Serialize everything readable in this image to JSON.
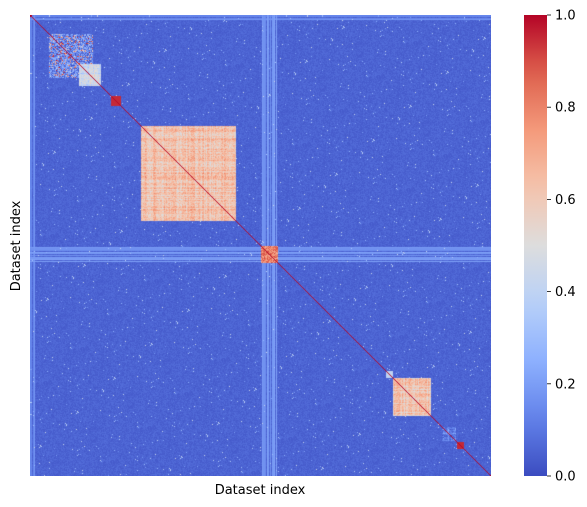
{
  "chart_data": {
    "type": "heatmap",
    "title": "",
    "xlabel": "Dataset index",
    "ylabel": "Dataset index",
    "n": 460,
    "colormap": "coolwarm",
    "colorbar": {
      "range": [
        0.0,
        1.0
      ],
      "ticks": [
        "0.0",
        "0.2",
        "0.4",
        "0.6",
        "0.8",
        "1.0"
      ]
    },
    "background_value": 0.03,
    "diagonal_value": 1.0,
    "blocks": [
      {
        "start": 18,
        "end": 62,
        "value": 0.3,
        "texture": "sparse-strong"
      },
      {
        "start": 48,
        "end": 70,
        "value": 0.55,
        "texture": "stripes"
      },
      {
        "start": 80,
        "end": 90,
        "value": 0.95,
        "texture": "solid"
      },
      {
        "start": 110,
        "end": 205,
        "value": 0.75,
        "texture": "stripes"
      },
      {
        "start": 230,
        "end": 247,
        "value": 0.92,
        "texture": "dots"
      },
      {
        "start": 355,
        "end": 362,
        "value": 0.4,
        "texture": "solid"
      },
      {
        "start": 362,
        "end": 400,
        "value": 0.72,
        "texture": "stripes"
      },
      {
        "start": 411,
        "end": 425,
        "value": 0.25,
        "texture": "stripes"
      },
      {
        "start": 426,
        "end": 433,
        "value": 0.95,
        "texture": "solid"
      }
    ],
    "bright_bands": [
      {
        "start": 230,
        "end": 247,
        "value": 0.15
      },
      {
        "start": 0,
        "end": 4,
        "value": 0.12
      }
    ],
    "grid": false
  }
}
